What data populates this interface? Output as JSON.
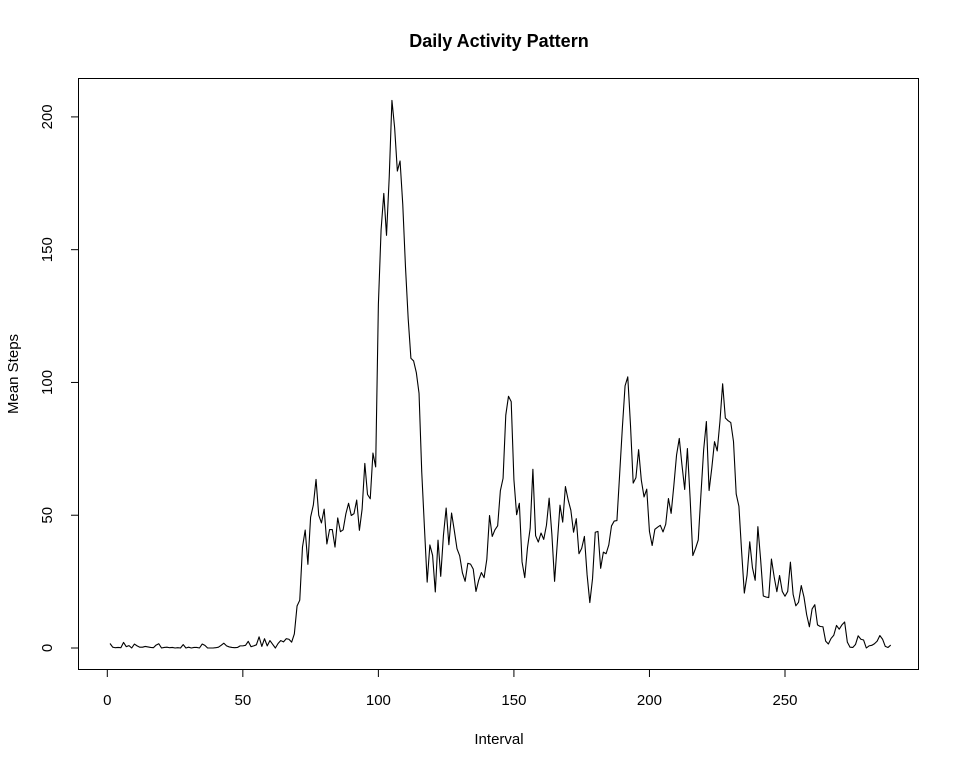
{
  "chart_data": {
    "type": "line",
    "title": "Daily Activity Pattern",
    "xlabel": "Interval",
    "ylabel": "Mean Steps",
    "xlim": [
      1,
      288
    ],
    "ylim": [
      0,
      206
    ],
    "xticks": [
      0,
      50,
      100,
      150,
      200,
      250
    ],
    "yticks": [
      0,
      50,
      100,
      150,
      200
    ],
    "grid": false,
    "legend": "none",
    "line_color": "#000000",
    "series": [
      {
        "values": [
          1.7,
          0.3,
          0.1,
          0.2,
          0.1,
          2.1,
          0.5,
          0.9,
          0.0,
          1.5,
          0.8,
          0.3,
          0.3,
          0.6,
          0.4,
          0.2,
          0.1,
          1.1,
          1.6,
          0.0,
          0.2,
          0.3,
          0.1,
          0.2,
          0.0,
          0.1,
          0.0,
          1.3,
          0.0,
          0.3,
          0.0,
          0.2,
          0.2,
          0.0,
          1.5,
          1.0,
          0.0,
          0.0,
          0.0,
          0.1,
          0.3,
          1.0,
          1.8,
          0.8,
          0.4,
          0.2,
          0.1,
          0.2,
          0.8,
          0.8,
          1.0,
          2.5,
          0.5,
          0.8,
          1.2,
          4.2,
          0.6,
          3.5,
          0.8,
          2.8,
          1.4,
          0.0,
          1.7,
          2.8,
          2.3,
          3.5,
          3.3,
          2.2,
          5.3,
          15.8,
          18.0,
          38.0,
          44.4,
          31.5,
          49.3,
          53.8,
          63.5,
          50.0,
          47.1,
          52.3,
          39.2,
          44.6,
          44.6,
          38.0,
          49.0,
          43.8,
          44.5,
          50.5,
          54.5,
          49.9,
          50.6,
          55.7,
          44.3,
          52.3,
          69.5,
          57.8,
          56.2,
          73.4,
          68.2,
          129.4,
          157.5,
          171.2,
          155.4,
          177.3,
          206.2,
          195.9,
          179.6,
          183.4,
          167.0,
          143.5,
          124.0,
          109.1,
          108.1,
          103.7,
          95.9,
          66.2,
          45.2,
          24.8,
          38.8,
          34.9,
          21.1,
          40.6,
          27.0,
          42.4,
          52.7,
          38.9,
          50.8,
          44.3,
          37.4,
          34.7,
          28.3,
          25.1,
          31.9,
          31.6,
          29.7,
          21.3,
          25.5,
          28.4,
          26.5,
          33.4,
          49.9,
          42.0,
          44.5,
          46.0,
          59.2,
          63.9,
          87.7,
          94.8,
          92.8,
          63.4,
          50.2,
          54.5,
          32.4,
          26.5,
          37.7,
          45.1,
          67.3,
          42.3,
          39.9,
          43.3,
          40.9,
          46.2,
          56.4,
          42.8,
          25.1,
          39.5,
          53.8,
          47.4,
          60.8,
          55.8,
          51.9,
          43.6,
          48.7,
          35.5,
          37.5,
          42.0,
          27.5,
          17.1,
          26.1,
          43.6,
          43.9,
          30.0,
          36.1,
          35.5,
          38.8,
          45.96,
          47.8,
          48.0,
          65.3,
          82.9,
          98.7,
          102.1,
          84.0,
          62.1,
          64.1,
          74.7,
          63.2,
          56.9,
          59.8,
          43.9,
          38.6,
          44.7,
          45.5,
          46.2,
          43.7,
          46.6,
          56.3,
          50.7,
          61.2,
          72.7,
          78.9,
          68.9,
          59.7,
          75.1,
          56.5,
          34.8,
          37.5,
          40.7,
          58.0,
          74.7,
          85.3,
          59.3,
          67.8,
          77.7,
          74.2,
          85.3,
          99.5,
          86.6,
          85.6,
          84.9,
          77.8,
          58.0,
          53.4,
          36.3,
          20.7,
          27.4,
          40.0,
          30.2,
          25.5,
          45.7,
          33.5,
          19.6,
          19.2,
          19.0,
          33.5,
          26.8,
          21.2,
          27.3,
          21.3,
          19.5,
          21.3,
          32.3,
          20.2,
          15.9,
          17.2,
          23.5,
          19.2,
          12.5,
          8.0,
          14.7,
          16.3,
          8.7,
          8.1,
          8.0,
          2.6,
          1.5,
          3.6,
          4.8,
          8.5,
          7.1,
          8.7,
          9.8,
          2.2,
          0.3,
          0.2,
          1.3,
          4.6,
          3.3,
          3.0,
          0.0,
          0.8,
          1.0,
          1.6,
          2.6,
          4.7,
          3.3,
          0.6,
          0.2,
          1.1
        ]
      }
    ]
  }
}
